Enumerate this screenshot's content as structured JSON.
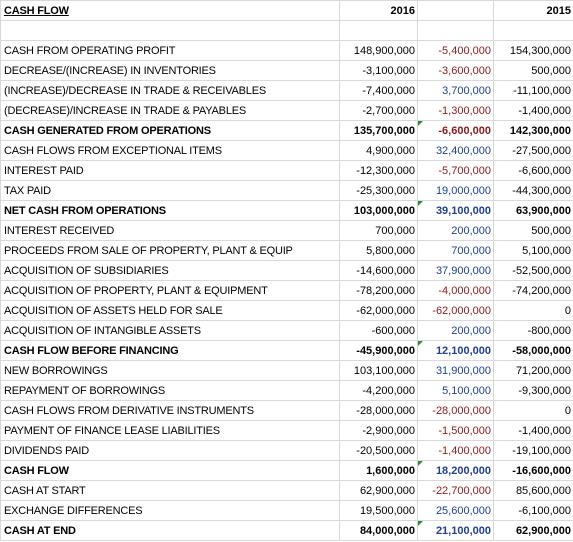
{
  "header": {
    "title": "CASH FLOW",
    "col_2016": "2016",
    "col_change": "",
    "col_2015": "2015"
  },
  "rows": [
    {
      "label": "CASH FROM OPERATING PROFIT",
      "v2016": "148,900,000",
      "change": "-5,400,000",
      "v2015": "154,300,000",
      "bold": false,
      "change_sign": "neg",
      "flag": false
    },
    {
      "label": "DECREASE/(INCREASE) IN INVENTORIES",
      "v2016": "-3,100,000",
      "change": "-3,600,000",
      "v2015": "500,000",
      "bold": false,
      "change_sign": "neg",
      "flag": false
    },
    {
      "label": "(INCREASE)/DECREASE IN TRADE & RECEIVABLES",
      "v2016": "-7,400,000",
      "change": "3,700,000",
      "v2015": "-11,100,000",
      "bold": false,
      "change_sign": "pos",
      "flag": false
    },
    {
      "label": "(DECREASE)/INCREASE IN TRADE & PAYABLES",
      "v2016": "-2,700,000",
      "change": "-1,300,000",
      "v2015": "-1,400,000",
      "bold": false,
      "change_sign": "neg",
      "flag": false
    },
    {
      "label": "CASH GENERATED FROM OPERATIONS",
      "v2016": "135,700,000",
      "change": "-6,600,000",
      "v2015": "142,300,000",
      "bold": true,
      "change_sign": "neg",
      "flag": true
    },
    {
      "label": "CASH FLOWS FROM EXCEPTIONAL ITEMS",
      "v2016": "4,900,000",
      "change": "32,400,000",
      "v2015": "-27,500,000",
      "bold": false,
      "change_sign": "pos",
      "flag": false
    },
    {
      "label": "INTEREST PAID",
      "v2016": "-12,300,000",
      "change": "-5,700,000",
      "v2015": "-6,600,000",
      "bold": false,
      "change_sign": "neg",
      "flag": false
    },
    {
      "label": "TAX PAID",
      "v2016": "-25,300,000",
      "change": "19,000,000",
      "v2015": "-44,300,000",
      "bold": false,
      "change_sign": "pos",
      "flag": false
    },
    {
      "label": "NET CASH FROM OPERATIONS",
      "v2016": "103,000,000",
      "change": "39,100,000",
      "v2015": "63,900,000",
      "bold": true,
      "change_sign": "pos",
      "flag": true
    },
    {
      "label": "INTEREST RECEIVED",
      "v2016": "700,000",
      "change": "200,000",
      "v2015": "500,000",
      "bold": false,
      "change_sign": "pos",
      "flag": false
    },
    {
      "label": "PROCEEDS FROM SALE OF PROPERTY, PLANT & EQUIP",
      "v2016": "5,800,000",
      "change": "700,000",
      "v2015": "5,100,000",
      "bold": false,
      "change_sign": "pos",
      "flag": false
    },
    {
      "label": "ACQUISITION OF SUBSIDIARIES",
      "v2016": "-14,600,000",
      "change": "37,900,000",
      "v2015": "-52,500,000",
      "bold": false,
      "change_sign": "pos",
      "flag": false
    },
    {
      "label": "ACQUISITION OF PROPERTY, PLANT & EQUIPMENT",
      "v2016": "-78,200,000",
      "change": "-4,000,000",
      "v2015": "-74,200,000",
      "bold": false,
      "change_sign": "neg",
      "flag": false
    },
    {
      "label": "ACQUISITION OF ASSETS HELD FOR SALE",
      "v2016": "-62,000,000",
      "change": "-62,000,000",
      "v2015": "0",
      "bold": false,
      "change_sign": "neg",
      "flag": false
    },
    {
      "label": "ACQUISITION OF INTANGIBLE ASSETS",
      "v2016": "-600,000",
      "change": "200,000",
      "v2015": "-800,000",
      "bold": false,
      "change_sign": "pos",
      "flag": false
    },
    {
      "label": "CASH FLOW BEFORE FINANCING",
      "v2016": "-45,900,000",
      "change": "12,100,000",
      "v2015": "-58,000,000",
      "bold": true,
      "change_sign": "pos",
      "flag": true
    },
    {
      "label": "NEW BORROWINGS",
      "v2016": "103,100,000",
      "change": "31,900,000",
      "v2015": "71,200,000",
      "bold": false,
      "change_sign": "pos",
      "flag": false
    },
    {
      "label": "REPAYMENT OF BORROWINGS",
      "v2016": "-4,200,000",
      "change": "5,100,000",
      "v2015": "-9,300,000",
      "bold": false,
      "change_sign": "pos",
      "flag": false
    },
    {
      "label": "CASH FLOWS FROM DERIVATIVE INSTRUMENTS",
      "v2016": "-28,000,000",
      "change": "-28,000,000",
      "v2015": "0",
      "bold": false,
      "change_sign": "neg",
      "flag": false
    },
    {
      "label": "PAYMENT OF FINANCE LEASE LIABILITIES",
      "v2016": "-2,900,000",
      "change": "-1,500,000",
      "v2015": "-1,400,000",
      "bold": false,
      "change_sign": "neg",
      "flag": false
    },
    {
      "label": "DIVIDENDS PAID",
      "v2016": "-20,500,000",
      "change": "-1,400,000",
      "v2015": "-19,100,000",
      "bold": false,
      "change_sign": "neg",
      "flag": false
    },
    {
      "label": "CASH FLOW",
      "v2016": "1,600,000",
      "change": "18,200,000",
      "v2015": "-16,600,000",
      "bold": true,
      "change_sign": "pos",
      "flag": true
    },
    {
      "label": "CASH AT START",
      "v2016": "62,900,000",
      "change": "-22,700,000",
      "v2015": "85,600,000",
      "bold": false,
      "change_sign": "neg",
      "flag": false
    },
    {
      "label": "EXCHANGE DIFFERENCES",
      "v2016": "19,500,000",
      "change": "25,600,000",
      "v2015": "-6,100,000",
      "bold": false,
      "change_sign": "pos",
      "flag": false
    },
    {
      "label": "CASH AT END",
      "v2016": "84,000,000",
      "change": "21,100,000",
      "v2015": "62,900,000",
      "bold": true,
      "change_sign": "pos",
      "flag": true
    }
  ],
  "colors": {
    "negative_change": "#8b1a1a",
    "positive_change": "#1f3f8f",
    "flag_marker": "#2e8b3e",
    "gridline": "#d9d9d9"
  }
}
